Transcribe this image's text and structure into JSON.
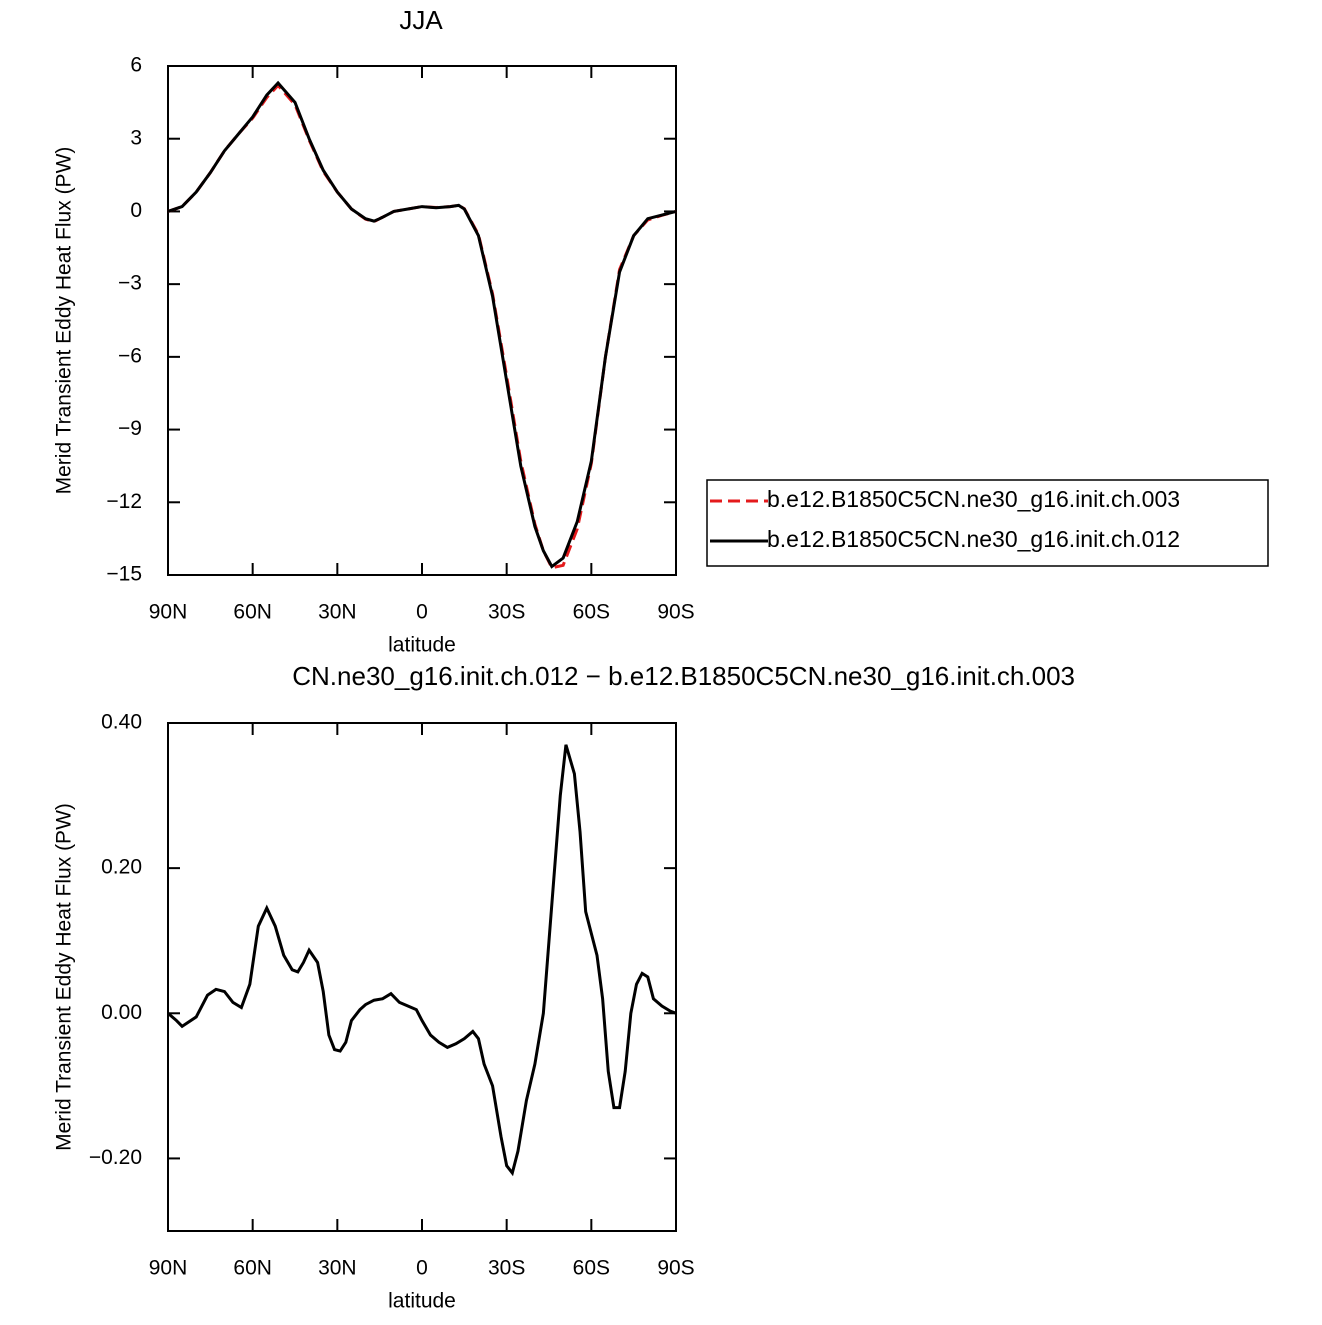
{
  "chart_data": [
    {
      "type": "line",
      "title": "JJA",
      "xlabel": "latitude",
      "ylabel": "Merid Transient Eddy Heat Flux (PW)",
      "x": [
        90,
        85,
        80,
        75,
        70,
        65,
        60,
        55,
        51,
        45,
        40,
        35,
        30,
        25,
        20,
        17,
        15,
        10,
        5,
        0,
        -5,
        -10,
        -13,
        -15,
        -20,
        -25,
        -30,
        -35,
        -40,
        -43,
        -46,
        -50,
        -55,
        -60,
        -65,
        -70,
        -75,
        -80,
        -85,
        -90
      ],
      "series": [
        {
          "name": "b.e12.B1850C5CN.ne30_g16.init.ch.003",
          "color": "#e41a1c",
          "dash": "dashed",
          "values": [
            0,
            0.2,
            0.8,
            1.6,
            2.5,
            3.2,
            3.85,
            4.7,
            5.2,
            4.4,
            2.95,
            1.65,
            0.8,
            0.1,
            -0.32,
            -0.42,
            -0.3,
            0.0,
            0.1,
            0.2,
            0.16,
            0.2,
            0.25,
            0.11,
            -0.95,
            -3.4,
            -6.8,
            -10.3,
            -12.9,
            -14.0,
            -14.7,
            -14.6,
            -13.1,
            -10.4,
            -6.0,
            -2.4,
            -1.0,
            -0.35,
            -0.16,
            0
          ]
        },
        {
          "name": "b.e12.B1850C5CN.ne30_g16.init.ch.012",
          "color": "#000000",
          "dash": "solid",
          "values": [
            0,
            0.2,
            0.8,
            1.6,
            2.5,
            3.2,
            3.9,
            4.8,
            5.3,
            4.5,
            3.0,
            1.7,
            0.8,
            0.1,
            -0.3,
            -0.4,
            -0.3,
            0.0,
            0.1,
            0.2,
            0.15,
            0.2,
            0.25,
            0.1,
            -1.0,
            -3.5,
            -7.0,
            -10.5,
            -13.0,
            -14.0,
            -14.65,
            -14.3,
            -12.8,
            -10.3,
            -6.0,
            -2.5,
            -1.0,
            -0.3,
            -0.15,
            0
          ]
        }
      ],
      "xlim": [
        90,
        -90
      ],
      "xticks": [
        {
          "value": 90,
          "label": "90N"
        },
        {
          "value": 60,
          "label": "60N"
        },
        {
          "value": 30,
          "label": "30N"
        },
        0,
        {
          "value": -30,
          "label": "30S"
        },
        {
          "value": -60,
          "label": "60S"
        },
        {
          "value": -90,
          "label": "90S"
        }
      ],
      "ylim": [
        -15,
        6
      ],
      "yticks": [
        6,
        3,
        0,
        {
          "value": -3,
          "label": "−3"
        },
        {
          "value": -6,
          "label": "−6"
        },
        {
          "value": -9,
          "label": "−9"
        },
        {
          "value": -12,
          "label": "−12"
        },
        {
          "value": -15,
          "label": "−15"
        }
      ],
      "legend": "right"
    },
    {
      "type": "line",
      "title": "CN.ne30_g16.init.ch.012 − b.e12.B1850C5CN.ne30_g16.init.ch.003",
      "xlabel": "latitude",
      "ylabel": "Merid Transient Eddy Heat Flux (PW)",
      "x": [
        90,
        87,
        85,
        80,
        76,
        73,
        70,
        67,
        64,
        61,
        58,
        55,
        52,
        49,
        46,
        44,
        42,
        40,
        37,
        35,
        33,
        31,
        29,
        27,
        25,
        22,
        20,
        17,
        14,
        11,
        8,
        5,
        2,
        0,
        -3,
        -6,
        -9,
        -12,
        -15,
        -18,
        -20,
        -22,
        -25,
        -28,
        -30,
        -32,
        -34,
        -37,
        -40,
        -43,
        -46,
        -49,
        -51,
        -54,
        -56,
        -58,
        -60,
        -62,
        -64,
        -66,
        -68,
        -70,
        -72,
        -74,
        -76,
        -78,
        -80,
        -82,
        -85,
        -88,
        -90
      ],
      "values": [
        0.0,
        -0.01,
        -0.018,
        -0.005,
        0.025,
        0.033,
        0.03,
        0.015,
        0.008,
        0.04,
        0.12,
        0.145,
        0.12,
        0.08,
        0.06,
        0.057,
        0.07,
        0.087,
        0.07,
        0.03,
        -0.03,
        -0.05,
        -0.052,
        -0.04,
        -0.01,
        0.005,
        0.012,
        0.018,
        0.02,
        0.027,
        0.015,
        0.01,
        0.005,
        -0.01,
        -0.03,
        -0.04,
        -0.047,
        -0.042,
        -0.035,
        -0.025,
        -0.035,
        -0.07,
        -0.1,
        -0.17,
        -0.21,
        -0.22,
        -0.19,
        -0.12,
        -0.07,
        0.0,
        0.15,
        0.3,
        0.37,
        0.33,
        0.25,
        0.14,
        0.11,
        0.08,
        0.02,
        -0.08,
        -0.13,
        -0.13,
        -0.08,
        0.0,
        0.04,
        0.055,
        0.05,
        0.02,
        0.01,
        0.003,
        0.0
      ],
      "color": "#000000",
      "xlim": [
        90,
        -90
      ],
      "xticks": [
        {
          "value": 90,
          "label": "90N"
        },
        {
          "value": 60,
          "label": "60N"
        },
        {
          "value": 30,
          "label": "30N"
        },
        0,
        {
          "value": -30,
          "label": "30S"
        },
        {
          "value": -60,
          "label": "60S"
        },
        {
          "value": -90,
          "label": "90S"
        }
      ],
      "ylim": [
        -0.3,
        0.4
      ],
      "yticks": [
        {
          "value": -0.2,
          "label": "−0.20"
        },
        {
          "value": 0,
          "label": "0.00"
        },
        {
          "value": 0.2,
          "label": "0.20"
        },
        {
          "value": 0.4,
          "label": "0.40"
        }
      ]
    }
  ]
}
